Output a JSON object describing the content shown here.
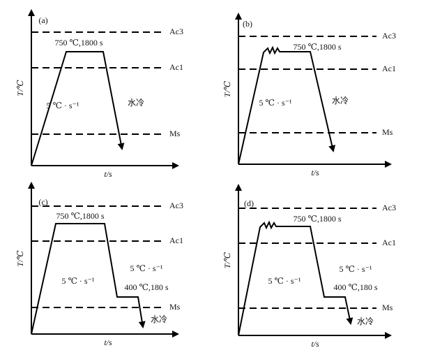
{
  "panels": [
    {
      "label": "(a)",
      "y_axis": "T/℃",
      "x_axis": "t/s",
      "levels": [
        "Ac3",
        "Ac1",
        "Ms"
      ],
      "annotations": [
        "750 ℃,1800 s",
        "5 ℃ · s⁻¹",
        "水冷"
      ]
    },
    {
      "label": "(b)",
      "y_axis": "T/℃",
      "x_axis": "t/s",
      "levels": [
        "Ac3",
        "Ac1",
        "Ms"
      ],
      "annotations": [
        "750 ℃,1800 s",
        "5 ℃ · s⁻¹",
        "水冷"
      ]
    },
    {
      "label": "(c)",
      "y_axis": "T/℃",
      "x_axis": "t/s",
      "levels": [
        "Ac3",
        "Ac1",
        "Ms"
      ],
      "annotations": [
        "750 ℃,1800 s",
        "5 ℃ · s⁻¹",
        "5 ℃ · s⁻¹",
        "400 ℃,180 s",
        "水冷"
      ]
    },
    {
      "label": "(d)",
      "y_axis": "T/℃",
      "x_axis": "t/s",
      "levels": [
        "Ac3",
        "Ac1",
        "Ms"
      ],
      "annotations": [
        "750 ℃,1800 s",
        "5 ℃ · s⁻¹",
        "5 ℃ · s⁻¹",
        "400 ℃,180 s",
        "水冷"
      ]
    }
  ]
}
